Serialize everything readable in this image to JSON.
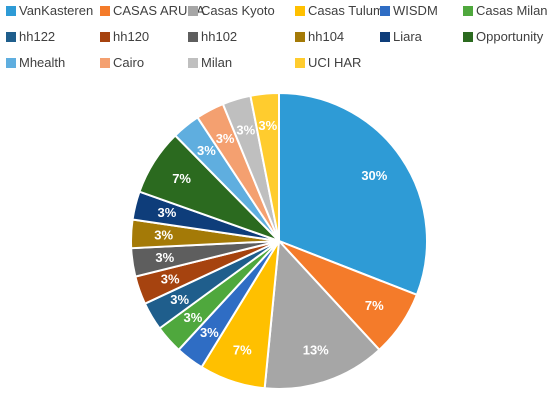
{
  "chart_data": {
    "type": "pie",
    "legend_position": "top",
    "data_labels": "percent",
    "slices": [
      {
        "name": "VanKasteren",
        "value": 30,
        "label": "30%",
        "color": "#2E9BD6"
      },
      {
        "name": "CASAS ARUBA",
        "value": 7,
        "label": "7%",
        "color": "#F47B2A"
      },
      {
        "name": "Casas Kyoto",
        "value": 13,
        "label": "13%",
        "color": "#A6A6A6"
      },
      {
        "name": "Casas Tulum",
        "value": 7,
        "label": "7%",
        "color": "#FFC000"
      },
      {
        "name": "WISDM",
        "value": 3,
        "label": "3%",
        "color": "#2F6DC4"
      },
      {
        "name": "Casas Milan",
        "value": 3,
        "label": "3%",
        "color": "#4FA83D"
      },
      {
        "name": "hh122",
        "value": 3,
        "label": "3%",
        "color": "#1F5E8C"
      },
      {
        "name": "hh120",
        "value": 3,
        "label": "3%",
        "color": "#A6430F"
      },
      {
        "name": "hh102",
        "value": 3,
        "label": "3%",
        "color": "#5E5E5E"
      },
      {
        "name": "hh104",
        "value": 3,
        "label": "3%",
        "color": "#A47A07"
      },
      {
        "name": "Liara",
        "value": 3,
        "label": "3%",
        "color": "#0E3D7A"
      },
      {
        "name": "Opportunity",
        "value": 7,
        "label": "7%",
        "color": "#2B6A1F"
      },
      {
        "name": "Mhealth",
        "value": 3,
        "label": "3%",
        "color": "#5FAEDF"
      },
      {
        "name": "Cairo",
        "value": 3,
        "label": "3%",
        "color": "#F4A070"
      },
      {
        "name": "Milan",
        "value": 3,
        "label": "3%",
        "color": "#BFBFBF"
      },
      {
        "name": "UCI HAR",
        "value": 3,
        "label": "3%",
        "color": "#FFCC2E"
      }
    ]
  }
}
